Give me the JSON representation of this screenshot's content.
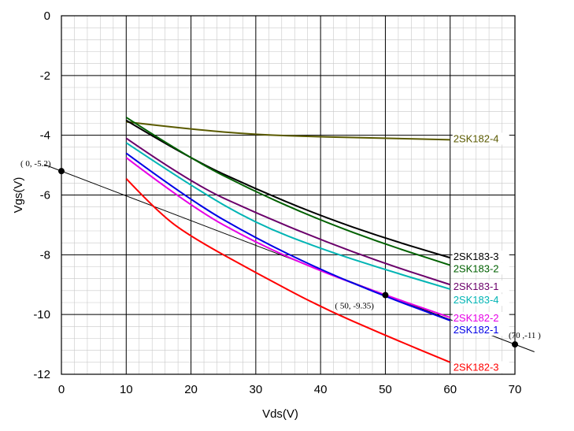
{
  "chart_data": {
    "type": "line",
    "title": "",
    "xlabel": "Vds(V)",
    "ylabel": "Vgs(V)",
    "xlim": [
      0,
      70
    ],
    "ylim": [
      -12,
      0
    ],
    "xticks": [
      0,
      10,
      20,
      30,
      40,
      50,
      60,
      70
    ],
    "yticks": [
      0,
      -2,
      -4,
      -6,
      -8,
      -10,
      -12
    ],
    "grid": true,
    "legend": "labels at right end of each line",
    "series": [
      {
        "name": "2SK182-4",
        "color": "#5a5a00",
        "x": [
          10,
          20,
          30,
          40,
          50,
          60
        ],
        "y": [
          -3.55,
          -3.8,
          -3.98,
          -4.05,
          -4.1,
          -4.15
        ]
      },
      {
        "name": "2SK183-3",
        "color": "#000000",
        "x": [
          10,
          20,
          30,
          40,
          50,
          60
        ],
        "y": [
          -3.5,
          -4.8,
          -5.8,
          -6.7,
          -7.45,
          -8.1
        ]
      },
      {
        "name": "2SK183-2",
        "color": "#006000",
        "x": [
          10,
          20,
          30,
          40,
          50,
          60
        ],
        "y": [
          -3.4,
          -4.8,
          -5.9,
          -6.85,
          -7.65,
          -8.35
        ]
      },
      {
        "name": "2SK183-1",
        "color": "#6b006b",
        "x": [
          10,
          20,
          30,
          40,
          50,
          60
        ],
        "y": [
          -4.1,
          -5.6,
          -6.6,
          -7.5,
          -8.3,
          -9.0
        ]
      },
      {
        "name": "2SK183-4",
        "color": "#00b4b4",
        "x": [
          10,
          20,
          30,
          40,
          50,
          60
        ],
        "y": [
          -4.25,
          -5.7,
          -6.95,
          -7.8,
          -8.5,
          -9.15
        ]
      },
      {
        "name": "2SK182-2",
        "color": "#e600e6",
        "x": [
          10,
          20,
          30,
          40,
          50,
          60
        ],
        "y": [
          -4.75,
          -6.4,
          -7.6,
          -8.55,
          -9.35,
          -10.1
        ]
      },
      {
        "name": "2SK182-1",
        "color": "#0000e6",
        "x": [
          10,
          20,
          30,
          40,
          50,
          60
        ],
        "y": [
          -4.6,
          -6.2,
          -7.45,
          -8.5,
          -9.4,
          -10.2
        ]
      },
      {
        "name": "2SK182-3",
        "color": "#ff0000",
        "x": [
          10,
          15,
          20,
          30,
          40,
          50,
          60
        ],
        "y": [
          -5.45,
          -6.6,
          -7.4,
          -8.6,
          -9.75,
          -10.7,
          -11.6
        ]
      }
    ],
    "reference_line": {
      "x": [
        0,
        70
      ],
      "y": [
        -5.2,
        -11
      ],
      "color": "#000000"
    },
    "annotations": [
      {
        "text": "( 0, -5.2)",
        "x": 0,
        "y": -5.2
      },
      {
        "text": "( 50, -9.35)",
        "x": 50,
        "y": -9.35
      },
      {
        "text": "(70 ,-11 )",
        "x": 70,
        "y": -11
      }
    ]
  }
}
